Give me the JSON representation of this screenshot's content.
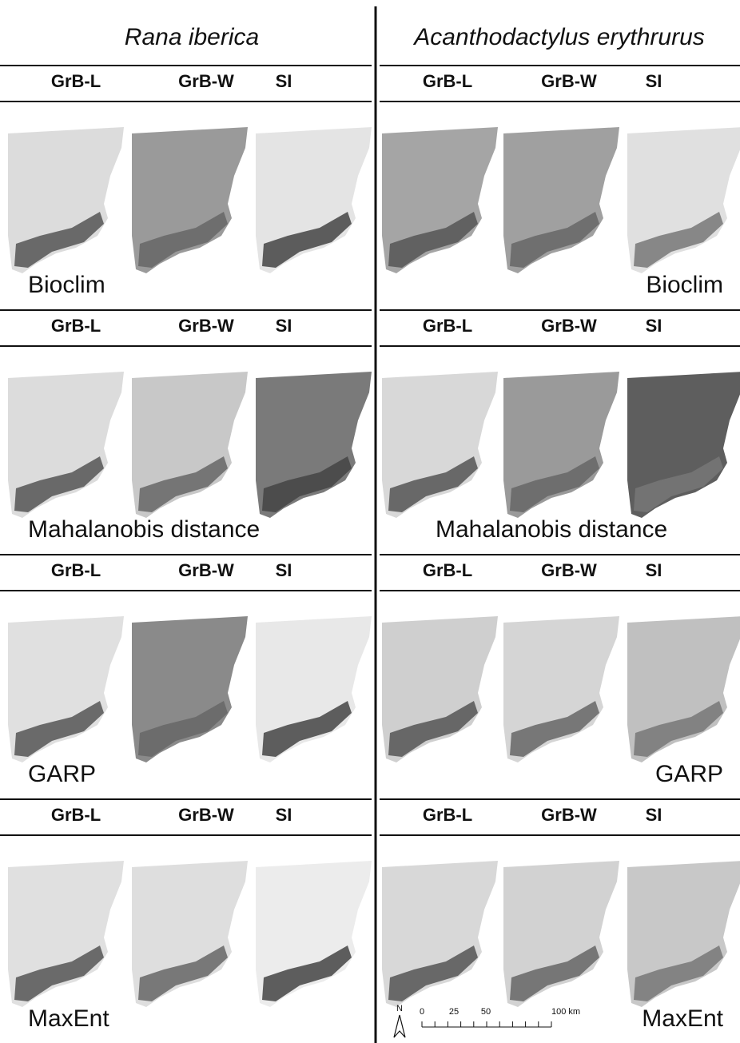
{
  "titles": [
    "Rana iberica",
    "Acanthodactylus erythrurus"
  ],
  "columns": [
    "GrB-L",
    "GrB-W",
    "SI"
  ],
  "models": [
    "Bioclim",
    "Mahalanobis distance",
    "GARP",
    "MaxEnt"
  ],
  "scale_bar": {
    "north": "N",
    "ticks": [
      "0",
      "25",
      "50",
      "100 km"
    ]
  }
}
